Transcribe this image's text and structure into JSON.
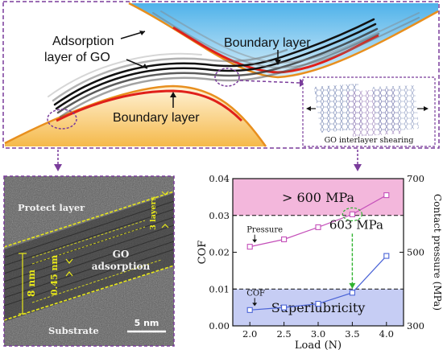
{
  "schematic": {
    "label_adsorption_line1": "Adsorption",
    "label_adsorption_line2": "layer of GO",
    "label_boundary_top": "Boundary layer",
    "label_boundary_bottom": "Boundary layer",
    "inset_caption": "GO interlayer shearing",
    "colors": {
      "top_fill": "#5cb8ea",
      "bottom_fill": "#f6c35a",
      "boundary_red": "#e0201a",
      "edge_orange": "#e88f1e",
      "callout_purple": "#7a3c9b"
    }
  },
  "tem": {
    "protect_layer": "Protect layer",
    "go_line1": "GO",
    "go_line2": "adsorption",
    "substrate": "Substrate",
    "scale_bar": "5 nm",
    "thickness_left": "8 nm",
    "spacing": "0.45 nm",
    "layers_right": "3 layers",
    "annotation_color": "#e8e81a"
  },
  "chart_data": {
    "type": "line",
    "xlabel": "Load (N)",
    "ylabel": "COF",
    "y2label": "Contact pressure (MPa)",
    "xlim": [
      1.75,
      4.25
    ],
    "xticks": [
      2.0,
      2.5,
      3.0,
      3.5,
      4.0
    ],
    "ylim": [
      0,
      0.04
    ],
    "yticks": [
      0.0,
      0.01,
      0.02,
      0.03,
      0.04
    ],
    "y2lim": [
      300,
      700
    ],
    "y2ticks": [
      300,
      500,
      700
    ],
    "x": [
      2.0,
      2.5,
      3.0,
      3.5,
      4.0
    ],
    "series": [
      {
        "name": "Pressure",
        "axis": "right",
        "color": "#c44fb9",
        "values": [
          515,
          535,
          568,
          603,
          655
        ]
      },
      {
        "name": "COF",
        "axis": "left",
        "color": "#4a63d6",
        "values": [
          0.0043,
          0.005,
          0.006,
          0.009,
          0.019
        ]
      }
    ],
    "bands": [
      {
        "label": "> 600 MPa",
        "axis": "left",
        "from": 0.03,
        "to": 0.04,
        "color": "#f3b7dc"
      },
      {
        "label": "Superlubricity",
        "axis": "left",
        "from": 0.0,
        "to": 0.01,
        "color": "#c6cdf4"
      }
    ],
    "annotations": [
      {
        "text": "603 MPa",
        "x": 3.5,
        "y2": 603
      }
    ],
    "grid": false
  }
}
